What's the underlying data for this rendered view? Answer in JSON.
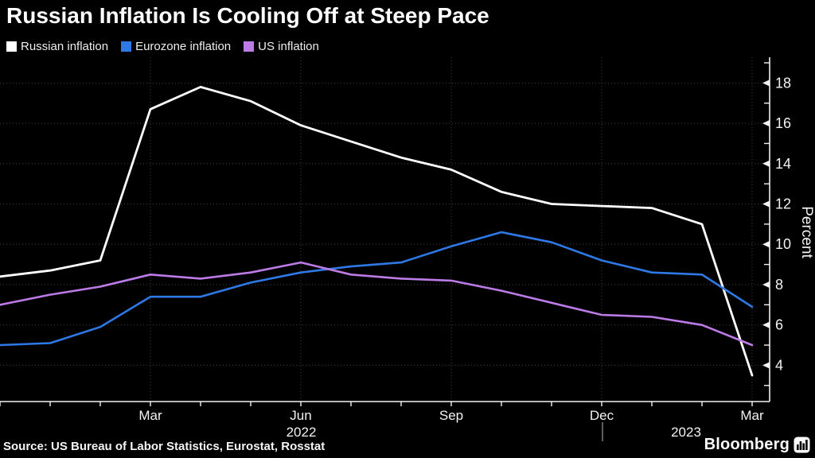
{
  "title": "Russian Inflation Is Cooling Off at Steep Pace",
  "legend": [
    {
      "label": "Russian inflation",
      "color": "#ffffff"
    },
    {
      "label": "Eurozone inflation",
      "color": "#2e79e6"
    },
    {
      "label": "US inflation",
      "color": "#bc7be6"
    }
  ],
  "chart_data": {
    "type": "line",
    "x": [
      "Dec '21",
      "Jan '22",
      "Feb '22",
      "Mar '22",
      "Apr '22",
      "May '22",
      "Jun '22",
      "Jul '22",
      "Aug '22",
      "Sep '22",
      "Oct '22",
      "Nov '22",
      "Dec '22",
      "Jan '23",
      "Feb '23",
      "Mar '23"
    ],
    "series": [
      {
        "name": "Russian inflation",
        "color": "#ffffff",
        "values": [
          8.4,
          8.7,
          9.2,
          16.7,
          17.8,
          17.1,
          15.9,
          15.1,
          14.3,
          13.7,
          12.6,
          12.0,
          11.9,
          11.8,
          11.0,
          3.5
        ]
      },
      {
        "name": "Eurozone inflation",
        "color": "#2e79e6",
        "values": [
          5.0,
          5.1,
          5.9,
          7.4,
          7.4,
          8.1,
          8.6,
          8.9,
          9.1,
          9.9,
          10.6,
          10.1,
          9.2,
          8.6,
          8.5,
          6.9
        ]
      },
      {
        "name": "US inflation",
        "color": "#bc7be6",
        "values": [
          7.0,
          7.5,
          7.9,
          8.5,
          8.3,
          8.6,
          9.1,
          8.5,
          8.3,
          8.2,
          7.7,
          7.1,
          6.5,
          6.4,
          6.0,
          5.0
        ]
      }
    ],
    "ylabel": "Percent",
    "ylim": [
      2.2,
      19.3
    ],
    "y_major_ticks": [
      4,
      6,
      8,
      10,
      12,
      14,
      16,
      18
    ],
    "y_minor_ticks": [
      3,
      5,
      7,
      9,
      11,
      13,
      15,
      17,
      19
    ],
    "x_tick_labels": [
      {
        "text": "Mar",
        "i": 3
      },
      {
        "text": "Jun",
        "i": 6
      },
      {
        "text": "Sep",
        "i": 9
      },
      {
        "text": "Dec",
        "i": 12
      },
      {
        "text": "Mar",
        "i": 15
      }
    ],
    "year_labels": [
      {
        "text": "2022"
      },
      {
        "text": "2023"
      }
    ],
    "year_divider_month_index": 12,
    "grid": "dotted",
    "legend_position": "top-left"
  },
  "source": "Source: US Bureau of Labor Statistics, Eurostat, Rosstat",
  "branding": {
    "wordmark": "Bloomberg"
  },
  "colors": {
    "background": "#000000",
    "axis": "#f2f2f2",
    "grid": "#3f3f3f",
    "tick_text": "#f2f2f2"
  }
}
